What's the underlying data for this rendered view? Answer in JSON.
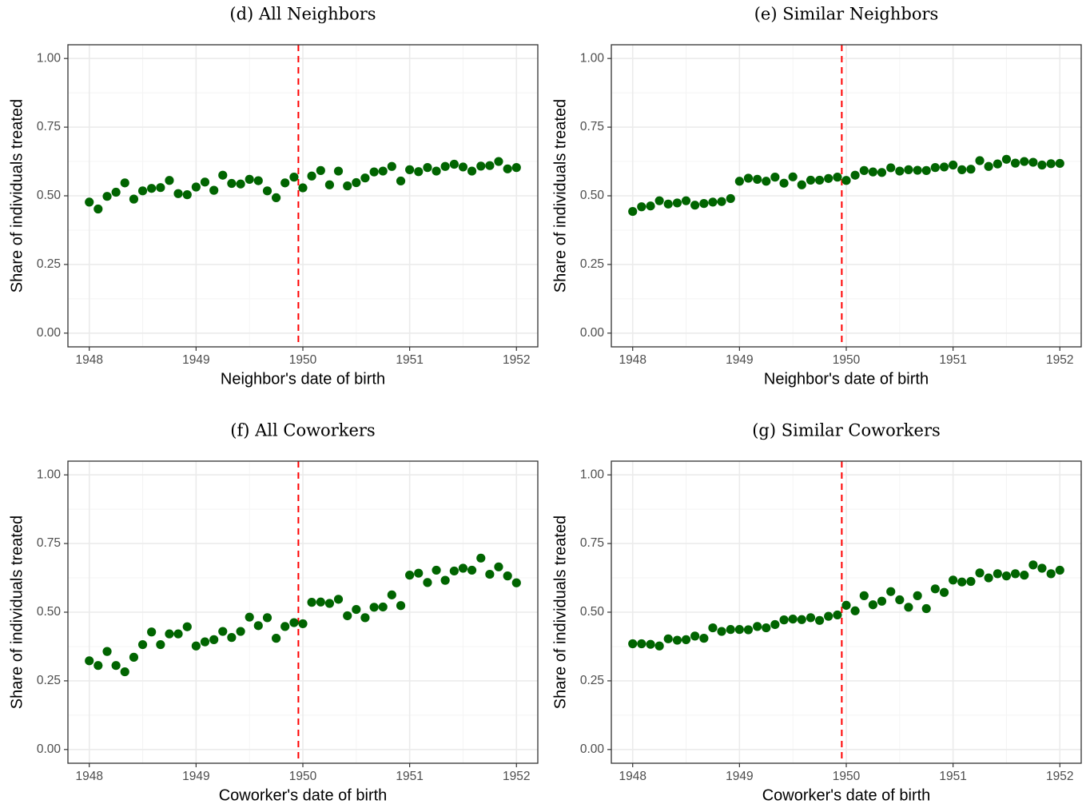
{
  "colors": {
    "points": "#006400",
    "cutoff_line": "#ff0000"
  },
  "chart_data": [
    {
      "type": "scatter",
      "title": "(d) All Neighbors",
      "xlabel": "Neighbor's date of birth",
      "ylabel": "Share of individuals treated",
      "xlim": [
        1947.8,
        1952.2
      ],
      "ylim": [
        -0.05,
        1.05
      ],
      "xticks": [
        "1948",
        "1949",
        "1950",
        "1951",
        "1952"
      ],
      "yticks": [
        "0.00",
        "0.25",
        "0.50",
        "0.75",
        "1.00"
      ],
      "cutoff_x": 1949.958,
      "grid": true,
      "series": [
        {
          "x": [
            1948.0,
            1948.083,
            1948.167,
            1948.25,
            1948.333,
            1948.417,
            1948.5,
            1948.583,
            1948.667,
            1948.75,
            1948.833,
            1948.917,
            1949.0,
            1949.083,
            1949.167,
            1949.25,
            1949.333,
            1949.417,
            1949.5,
            1949.583,
            1949.667,
            1949.75,
            1949.833,
            1949.917,
            1950.0,
            1950.083,
            1950.167,
            1950.25,
            1950.333,
            1950.417,
            1950.5,
            1950.583,
            1950.667,
            1950.75,
            1950.833,
            1950.917,
            1951.0,
            1951.083,
            1951.167,
            1951.25,
            1951.333,
            1951.417,
            1951.5,
            1951.583,
            1951.667,
            1951.75,
            1951.833,
            1951.917,
            1952.0
          ],
          "y": [
            0.477,
            0.452,
            0.498,
            0.513,
            0.547,
            0.488,
            0.518,
            0.527,
            0.53,
            0.556,
            0.508,
            0.504,
            0.532,
            0.55,
            0.52,
            0.575,
            0.545,
            0.543,
            0.56,
            0.555,
            0.518,
            0.493,
            0.547,
            0.568,
            0.529,
            0.572,
            0.592,
            0.54,
            0.59,
            0.536,
            0.548,
            0.565,
            0.587,
            0.59,
            0.607,
            0.554,
            0.595,
            0.588,
            0.603,
            0.59,
            0.607,
            0.615,
            0.605,
            0.59,
            0.608,
            0.61,
            0.625,
            0.598,
            0.603
          ]
        }
      ]
    },
    {
      "type": "scatter",
      "title": "(e) Similar Neighbors",
      "xlabel": "Neighbor's date of birth",
      "ylabel": "Share of individuals treated",
      "xlim": [
        1947.8,
        1952.2
      ],
      "ylim": [
        -0.05,
        1.05
      ],
      "xticks": [
        "1948",
        "1949",
        "1950",
        "1951",
        "1952"
      ],
      "yticks": [
        "0.00",
        "0.25",
        "0.50",
        "0.75",
        "1.00"
      ],
      "cutoff_x": 1949.958,
      "grid": true,
      "series": [
        {
          "x": [
            1948.0,
            1948.083,
            1948.167,
            1948.25,
            1948.333,
            1948.417,
            1948.5,
            1948.583,
            1948.667,
            1948.75,
            1948.833,
            1948.917,
            1949.0,
            1949.083,
            1949.167,
            1949.25,
            1949.333,
            1949.417,
            1949.5,
            1949.583,
            1949.667,
            1949.75,
            1949.833,
            1949.917,
            1950.0,
            1950.083,
            1950.167,
            1950.25,
            1950.333,
            1950.417,
            1950.5,
            1950.583,
            1950.667,
            1950.75,
            1950.833,
            1950.917,
            1951.0,
            1951.083,
            1951.167,
            1951.25,
            1951.333,
            1951.417,
            1951.5,
            1951.583,
            1951.667,
            1951.75,
            1951.833,
            1951.917,
            1952.0
          ],
          "y": [
            0.443,
            0.46,
            0.463,
            0.482,
            0.47,
            0.474,
            0.482,
            0.466,
            0.472,
            0.477,
            0.479,
            0.49,
            0.553,
            0.564,
            0.56,
            0.553,
            0.568,
            0.546,
            0.569,
            0.54,
            0.557,
            0.557,
            0.563,
            0.568,
            0.556,
            0.575,
            0.592,
            0.587,
            0.585,
            0.602,
            0.59,
            0.595,
            0.593,
            0.592,
            0.603,
            0.605,
            0.612,
            0.595,
            0.597,
            0.628,
            0.607,
            0.616,
            0.633,
            0.619,
            0.625,
            0.622,
            0.612,
            0.617,
            0.618
          ]
        }
      ]
    },
    {
      "type": "scatter",
      "title": "(f) All Coworkers",
      "xlabel": "Coworker's date of birth",
      "ylabel": "Share of individuals treated",
      "xlim": [
        1947.8,
        1952.2
      ],
      "ylim": [
        -0.05,
        1.05
      ],
      "xticks": [
        "1948",
        "1949",
        "1950",
        "1951",
        "1952"
      ],
      "yticks": [
        "0.00",
        "0.25",
        "0.50",
        "0.75",
        "1.00"
      ],
      "cutoff_x": 1949.958,
      "grid": true,
      "series": [
        {
          "x": [
            1948.0,
            1948.083,
            1948.167,
            1948.25,
            1948.333,
            1948.417,
            1948.5,
            1948.583,
            1948.667,
            1948.75,
            1948.833,
            1948.917,
            1949.0,
            1949.083,
            1949.167,
            1949.25,
            1949.333,
            1949.417,
            1949.5,
            1949.583,
            1949.667,
            1949.75,
            1949.833,
            1949.917,
            1950.0,
            1950.083,
            1950.167,
            1950.25,
            1950.333,
            1950.417,
            1950.5,
            1950.583,
            1950.667,
            1950.75,
            1950.833,
            1950.917,
            1951.0,
            1951.083,
            1951.167,
            1951.25,
            1951.333,
            1951.417,
            1951.5,
            1951.583,
            1951.667,
            1951.75,
            1951.833,
            1951.917,
            1952.0
          ],
          "y": [
            0.323,
            0.306,
            0.357,
            0.306,
            0.283,
            0.336,
            0.382,
            0.428,
            0.382,
            0.421,
            0.421,
            0.447,
            0.377,
            0.392,
            0.4,
            0.43,
            0.408,
            0.43,
            0.482,
            0.451,
            0.48,
            0.405,
            0.448,
            0.462,
            0.458,
            0.536,
            0.537,
            0.532,
            0.547,
            0.487,
            0.51,
            0.48,
            0.518,
            0.519,
            0.563,
            0.524,
            0.635,
            0.642,
            0.608,
            0.653,
            0.616,
            0.65,
            0.66,
            0.653,
            0.697,
            0.638,
            0.665,
            0.632,
            0.607
          ]
        }
      ]
    },
    {
      "type": "scatter",
      "title": "(g) Similar Coworkers",
      "xlabel": "Coworker's date of birth",
      "ylabel": "Share of individuals treated",
      "xlim": [
        1947.8,
        1952.2
      ],
      "ylim": [
        -0.05,
        1.05
      ],
      "xticks": [
        "1948",
        "1949",
        "1950",
        "1951",
        "1952"
      ],
      "yticks": [
        "0.00",
        "0.25",
        "0.50",
        "0.75",
        "1.00"
      ],
      "cutoff_x": 1949.958,
      "grid": true,
      "series": [
        {
          "x": [
            1948.0,
            1948.083,
            1948.167,
            1948.25,
            1948.333,
            1948.417,
            1948.5,
            1948.583,
            1948.667,
            1948.75,
            1948.833,
            1948.917,
            1949.0,
            1949.083,
            1949.167,
            1949.25,
            1949.333,
            1949.417,
            1949.5,
            1949.583,
            1949.667,
            1949.75,
            1949.833,
            1949.917,
            1950.0,
            1950.083,
            1950.167,
            1950.25,
            1950.333,
            1950.417,
            1950.5,
            1950.583,
            1950.667,
            1950.75,
            1950.833,
            1950.917,
            1951.0,
            1951.083,
            1951.167,
            1951.25,
            1951.333,
            1951.417,
            1951.5,
            1951.583,
            1951.667,
            1951.75,
            1951.833,
            1951.917,
            1952.0
          ],
          "y": [
            0.385,
            0.385,
            0.383,
            0.377,
            0.403,
            0.398,
            0.4,
            0.413,
            0.405,
            0.443,
            0.43,
            0.437,
            0.437,
            0.436,
            0.448,
            0.443,
            0.455,
            0.472,
            0.475,
            0.473,
            0.48,
            0.47,
            0.485,
            0.49,
            0.525,
            0.505,
            0.56,
            0.527,
            0.54,
            0.575,
            0.545,
            0.518,
            0.56,
            0.513,
            0.585,
            0.572,
            0.617,
            0.61,
            0.612,
            0.643,
            0.625,
            0.64,
            0.632,
            0.64,
            0.635,
            0.672,
            0.66,
            0.64,
            0.653
          ]
        }
      ]
    }
  ]
}
